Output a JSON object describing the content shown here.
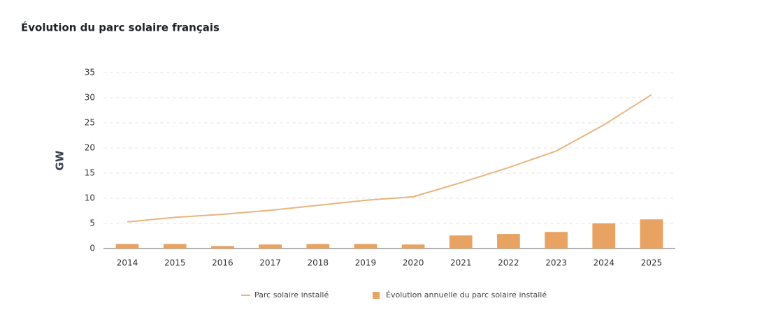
{
  "chart_data": {
    "type": "combo",
    "title": "Évolution du parc solaire français",
    "y_label": "GW",
    "categories": [
      "2014",
      "2015",
      "2016",
      "2017",
      "2018",
      "2019",
      "2020",
      "2021",
      "2022",
      "2023",
      "2024",
      "2025"
    ],
    "series": [
      {
        "name": "Parc solaire installé",
        "type": "line",
        "color": "#e9b47c",
        "values": [
          5.3,
          6.2,
          6.8,
          7.6,
          8.6,
          9.6,
          10.3,
          13.1,
          16.1,
          19.4,
          24.6,
          30.6
        ]
      },
      {
        "name": "Évolution annuelle du parc solaire installé",
        "type": "bar",
        "color": "#e8a362",
        "values": [
          0.9,
          0.9,
          0.5,
          0.8,
          0.9,
          0.9,
          0.8,
          2.6,
          2.9,
          3.3,
          5.0,
          5.8
        ]
      }
    ],
    "ylim": [
      0,
      35
    ],
    "yticks": [
      0,
      5,
      10,
      15,
      20,
      25,
      30,
      35
    ],
    "grid": true
  }
}
